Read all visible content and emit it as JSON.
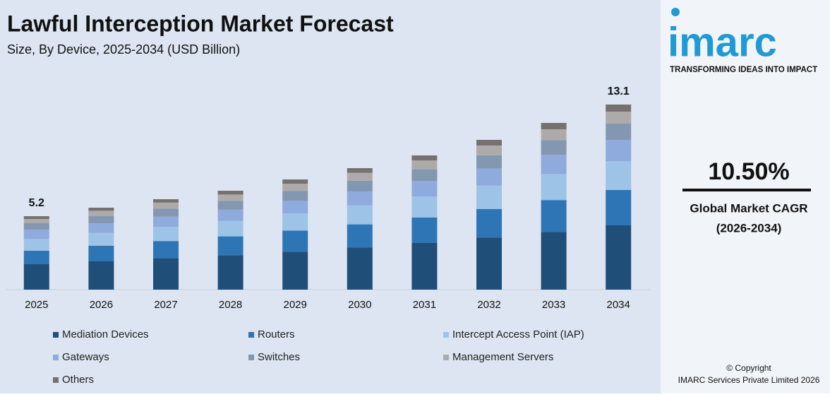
{
  "chart_data": {
    "type": "stacked_bar",
    "title": "Lawful Interception Market Forecast",
    "subtitle": "Size, By Device, 2025-2034 (USD Billion)",
    "categories": [
      "2025",
      "2026",
      "2027",
      "2028",
      "2029",
      "2030",
      "2031",
      "2032",
      "2033",
      "2034"
    ],
    "series": [
      {
        "name": "Mediation Devices",
        "color": "#1f4e79",
        "values": [
          1.8,
          2.0,
          2.22,
          2.43,
          2.69,
          2.98,
          3.3,
          3.69,
          4.09,
          4.55
        ]
      },
      {
        "name": "Routers",
        "color": "#2e75b6",
        "values": [
          0.95,
          1.11,
          1.22,
          1.34,
          1.49,
          1.64,
          1.81,
          2.02,
          2.25,
          2.5
        ]
      },
      {
        "name": "Intercept Access Point (IAP)",
        "color": "#9dc3e6",
        "values": [
          0.85,
          0.91,
          1.0,
          1.09,
          1.22,
          1.34,
          1.48,
          1.65,
          1.84,
          2.05
        ]
      },
      {
        "name": "Gateways",
        "color": "#8faadc",
        "values": [
          0.65,
          0.67,
          0.74,
          0.8,
          0.9,
          0.99,
          1.09,
          1.22,
          1.36,
          1.5
        ]
      },
      {
        "name": "Switches",
        "color": "#8497b0",
        "values": [
          0.45,
          0.51,
          0.56,
          0.62,
          0.69,
          0.76,
          0.84,
          0.93,
          1.04,
          1.15
        ]
      },
      {
        "name": "Management Servers",
        "color": "#aeaaaa",
        "values": [
          0.3,
          0.38,
          0.42,
          0.45,
          0.51,
          0.56,
          0.62,
          0.69,
          0.77,
          0.85
        ]
      },
      {
        "name": "Others",
        "color": "#757171",
        "values": [
          0.2,
          0.22,
          0.24,
          0.27,
          0.3,
          0.33,
          0.36,
          0.4,
          0.45,
          0.5
        ]
      }
    ],
    "totals": [
      5.2,
      null,
      null,
      null,
      null,
      null,
      null,
      null,
      null,
      13.1
    ],
    "ylim": [
      0,
      14
    ]
  },
  "sidebar": {
    "logo": "imarc",
    "tagline": "TRANSFORMING IDEAS INTO IMPACT",
    "cagr": "10.50%",
    "cagr_label": "Global Market CAGR",
    "cagr_period": "(2026-2034)",
    "copyright": "© Copyright",
    "company": "IMARC Services Private Limited 2026"
  }
}
